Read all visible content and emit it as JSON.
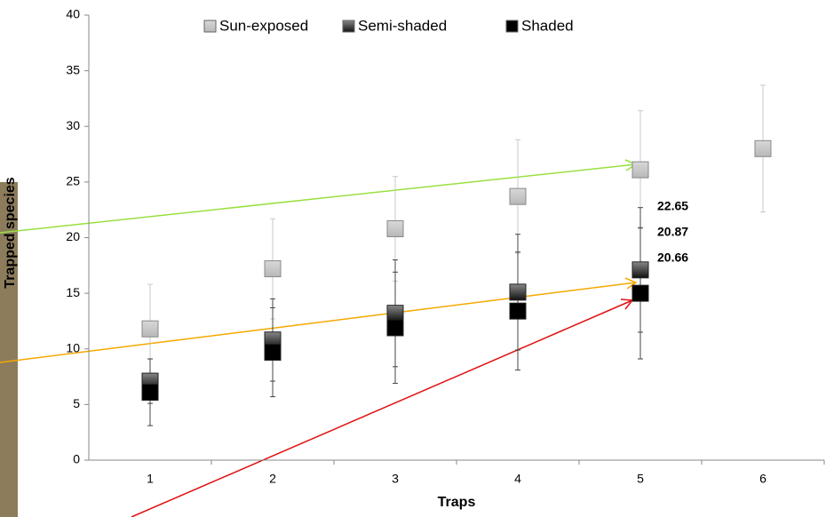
{
  "chart_data": {
    "type": "errorbar",
    "x_label": "Traps",
    "y_label": "Trapped species",
    "categories": [
      "1",
      "2",
      "3",
      "4",
      "5",
      "6"
    ],
    "series": [
      {
        "name": "Sun-exposed",
        "color": "#c4c4c4",
        "values": [
          11.8,
          17.2,
          20.8,
          23.7,
          26.1,
          28.0
        ],
        "errors": [
          4.0,
          4.5,
          4.7,
          5.1,
          5.3,
          5.7
        ]
      },
      {
        "name": "Semi-shaded",
        "color": "#555555",
        "values": [
          7.1,
          10.8,
          13.2,
          15.1,
          17.1,
          null
        ],
        "errors": [
          2.0,
          3.7,
          4.8,
          5.2,
          5.6,
          null
        ]
      },
      {
        "name": "Shaded",
        "color": "#000000",
        "values": [
          6.1,
          9.7,
          11.9,
          13.4,
          15.0,
          null
        ],
        "errors": [
          3.0,
          4.0,
          5.0,
          5.3,
          5.9,
          null
        ]
      }
    ],
    "annotations": [
      {
        "text": "22.65",
        "color": "#555555"
      },
      {
        "text": "20.87",
        "color": "#000000"
      },
      {
        "text": "20.66",
        "color": "#9a9a9a"
      }
    ],
    "ylim": [
      0,
      40
    ],
    "yticks": [
      0,
      5,
      10,
      15,
      20,
      25,
      30,
      35,
      40
    ],
    "legend": "top"
  }
}
